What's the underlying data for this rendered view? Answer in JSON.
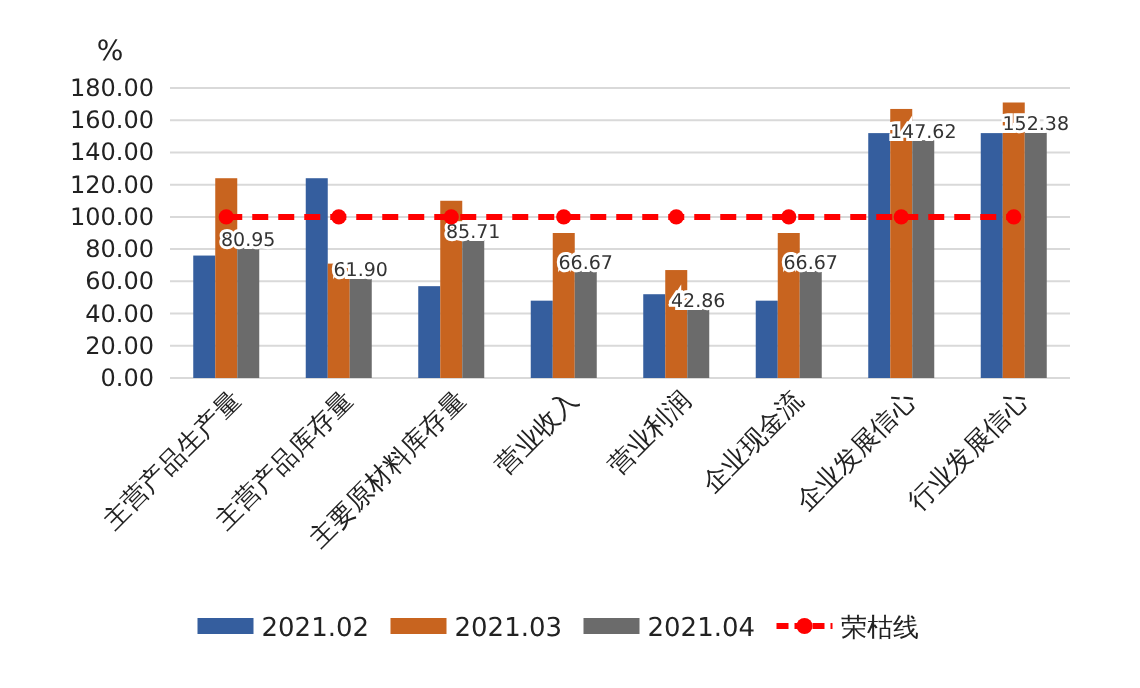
{
  "chart_data": {
    "type": "bar",
    "ylabel": "%",
    "categories": [
      "主营产品生产量",
      "主营产品库存量",
      "主要原材料库存量",
      "营业收入",
      "营业利润",
      "企业现金流",
      "企业发展信心",
      "行业发展信心"
    ],
    "series": [
      {
        "name": "2021.02",
        "color": "#355e9e",
        "values": [
          76,
          124,
          57,
          48,
          52,
          48,
          152,
          152
        ]
      },
      {
        "name": "2021.03",
        "color": "#c8641f",
        "values": [
          124,
          71,
          110,
          90,
          67,
          90,
          167,
          171
        ]
      },
      {
        "name": "2021.04",
        "color": "#6b6b6b",
        "values": [
          80.95,
          61.9,
          85.71,
          66.67,
          42.86,
          66.67,
          147.62,
          152.38
        ],
        "value_labels": [
          "80.95",
          "61.90",
          "85.71",
          "66.67",
          "42.86",
          "66.67",
          "147.62",
          "152.38"
        ]
      },
      {
        "name": "荣枯线",
        "type": "line",
        "color": "#ff0000",
        "values": [
          100,
          100,
          100,
          100,
          100,
          100,
          100,
          100
        ],
        "marker": "circle",
        "line_style": "dashed"
      }
    ],
    "ylim": [
      0,
      180
    ],
    "yticks": [
      {
        "value": 0,
        "label": "0.00"
      },
      {
        "value": 20,
        "label": "20.00"
      },
      {
        "value": 40,
        "label": "40.00"
      },
      {
        "value": 60,
        "label": "60.00"
      },
      {
        "value": 80,
        "label": "80.00"
      },
      {
        "value": 100,
        "label": "100.00"
      },
      {
        "value": 120,
        "label": "120.00"
      },
      {
        "value": 140,
        "label": "140.00"
      },
      {
        "value": 160,
        "label": "160.00"
      },
      {
        "value": 180,
        "label": "180.00"
      }
    ],
    "grid": "y",
    "legend": "bottom"
  }
}
